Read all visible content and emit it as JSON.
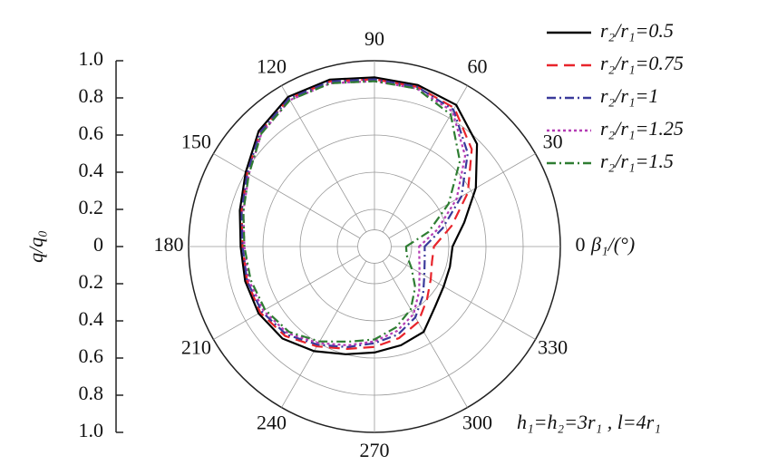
{
  "chart_data": {
    "type": "polar",
    "x_label": "β₁/(°)",
    "y_label": "q/q₀",
    "annotation": "h₁=h₂=3r₁ , l=4r₁",
    "x": [
      0,
      15,
      30,
      45,
      60,
      75,
      90,
      105,
      120,
      135,
      150,
      165,
      180,
      195,
      210,
      225,
      240,
      255,
      270,
      285,
      300,
      315,
      330,
      345
    ],
    "xticks": [
      0,
      30,
      60,
      90,
      120,
      150,
      180,
      210,
      240,
      270,
      300,
      330
    ],
    "ylim": [
      0,
      1
    ],
    "yticks": [
      {
        "value": 1,
        "label": "1.0"
      },
      {
        "value": 0.8,
        "label": "0.8"
      },
      {
        "value": 0.6,
        "label": "0.6"
      },
      {
        "value": 0.4,
        "label": "0.4"
      },
      {
        "value": 0.2,
        "label": "0.2"
      },
      0,
      {
        "value": 0.2,
        "label": "0.2"
      },
      {
        "value": 0.4,
        "label": "0.4"
      },
      {
        "value": 0.6,
        "label": "0.6"
      },
      {
        "value": 0.8,
        "label": "0.8"
      },
      {
        "value": 1,
        "label": "1.0"
      }
    ],
    "grid": true,
    "legend": "upper right",
    "series": [
      {
        "name": "r₂/r₁=0.5",
        "color": "#000000",
        "linestyle": "solid",
        "values": [
          0.42,
          0.5,
          0.63,
          0.78,
          0.88,
          0.9,
          0.91,
          0.93,
          0.93,
          0.88,
          0.8,
          0.75,
          0.72,
          0.72,
          0.72,
          0.7,
          0.65,
          0.6,
          0.57,
          0.55,
          0.53,
          0.46,
          0.43,
          0.42
        ]
      },
      {
        "name": "r₂/r₁=0.75",
        "color": "#e8242b",
        "linestyle": "dashed",
        "values": [
          0.32,
          0.43,
          0.58,
          0.74,
          0.86,
          0.89,
          0.9,
          0.92,
          0.92,
          0.87,
          0.79,
          0.74,
          0.71,
          0.71,
          0.71,
          0.68,
          0.62,
          0.57,
          0.54,
          0.51,
          0.47,
          0.4,
          0.35,
          0.32
        ]
      },
      {
        "name": "r₂/r₁=1",
        "color": "#3a3a9a",
        "linestyle": "dashdot",
        "values": [
          0.27,
          0.38,
          0.54,
          0.71,
          0.85,
          0.89,
          0.9,
          0.92,
          0.92,
          0.87,
          0.79,
          0.74,
          0.71,
          0.71,
          0.7,
          0.67,
          0.61,
          0.56,
          0.52,
          0.49,
          0.44,
          0.37,
          0.31,
          0.28
        ]
      },
      {
        "name": "r₂/r₁=1.25",
        "color": "#b43cb4",
        "linestyle": "dotted",
        "values": [
          0.24,
          0.35,
          0.51,
          0.69,
          0.84,
          0.88,
          0.89,
          0.91,
          0.91,
          0.86,
          0.78,
          0.73,
          0.7,
          0.7,
          0.69,
          0.66,
          0.6,
          0.55,
          0.51,
          0.47,
          0.42,
          0.34,
          0.28,
          0.25
        ]
      },
      {
        "name": "r₂/r₁=1.5",
        "color": "#2e7d32",
        "linestyle": "dashdot",
        "values": [
          0.17,
          0.3,
          0.46,
          0.65,
          0.82,
          0.88,
          0.89,
          0.91,
          0.91,
          0.86,
          0.78,
          0.73,
          0.7,
          0.69,
          0.68,
          0.65,
          0.59,
          0.53,
          0.5,
          0.45,
          0.39,
          0.31,
          0.23,
          0.18
        ]
      }
    ]
  }
}
